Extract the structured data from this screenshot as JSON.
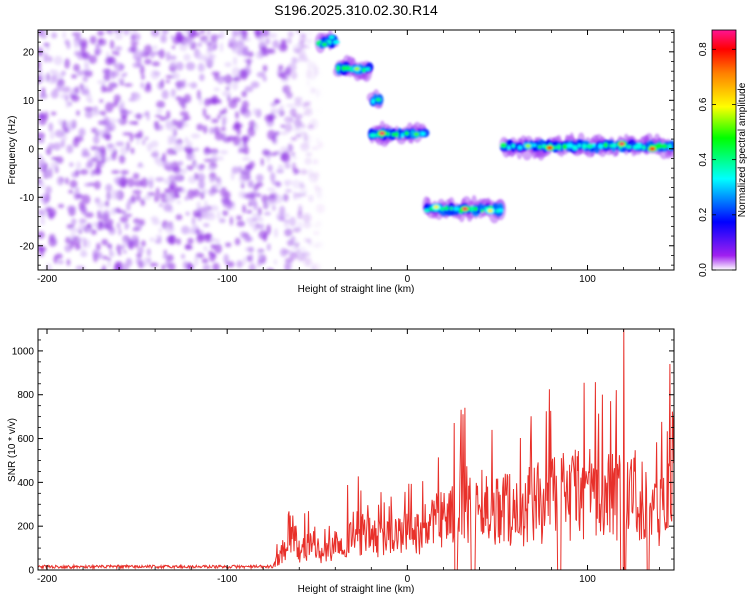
{
  "figure_title": "S196.2025.310.02.30.R14",
  "chart_data": [
    {
      "type": "heatmap",
      "xlabel": "Height of straight line (km)",
      "ylabel": "Frequency (Hz)",
      "xlim": [
        -205,
        148
      ],
      "ylim": [
        -25,
        24.5
      ],
      "xticks": [
        -200,
        -100,
        0,
        100
      ],
      "yticks": [
        -20,
        -10,
        0,
        10,
        20
      ],
      "colorbar": {
        "label": "Normalized spectral amplitude",
        "range": [
          0,
          0.87
        ],
        "ticks": [
          0.0,
          0.2,
          0.4,
          0.6,
          0.8
        ],
        "colormap": [
          "#ffffff",
          "#a020f0",
          "#0000ff",
          "#00ffff",
          "#00ff00",
          "#ffff00",
          "#ff8000",
          "#ff0000",
          "#ff1493"
        ]
      },
      "noise_region": {
        "x": [
          -205,
          -48
        ],
        "frequency_range": [
          -25,
          24.5
        ],
        "amplitude_range": [
          0.0,
          0.1
        ]
      },
      "segments": [
        {
          "x": [
            -49,
            -39
          ],
          "frequency": 22
        },
        {
          "x": [
            -39,
            -20
          ],
          "frequency": 16.5
        },
        {
          "x": [
            -20,
            -14
          ],
          "frequency": 10
        },
        {
          "x": [
            -20,
            10
          ],
          "frequency": 3
        },
        {
          "x": [
            10,
            53
          ],
          "frequency": -12.5
        },
        {
          "x": [
            53,
            148
          ],
          "frequency": 0.5
        }
      ],
      "peaks": [
        {
          "x": -46,
          "frequency": 21.5,
          "amplitude": 0.45
        },
        {
          "x": -42,
          "frequency": 23,
          "amplitude": 0.35
        },
        {
          "x": -28,
          "frequency": 16.5,
          "amplitude": 0.55
        },
        {
          "x": -14,
          "frequency": 3.2,
          "amplitude": 0.85
        },
        {
          "x": 5,
          "frequency": 3,
          "amplitude": 0.5
        },
        {
          "x": 16,
          "frequency": -12,
          "amplitude": 0.6
        },
        {
          "x": 32,
          "frequency": -12.4,
          "amplitude": 0.85
        },
        {
          "x": 46,
          "frequency": -12.8,
          "amplitude": 0.6
        },
        {
          "x": 67,
          "frequency": 0.6,
          "amplitude": 0.55
        },
        {
          "x": 79,
          "frequency": 0.2,
          "amplitude": 0.8
        },
        {
          "x": 119,
          "frequency": 1,
          "amplitude": 0.85
        },
        {
          "x": 136,
          "frequency": 0,
          "amplitude": 0.8
        }
      ]
    },
    {
      "type": "line",
      "xlabel": "Height of straight line (km)",
      "ylabel": "SNR (10 * v/v)",
      "xlim": [
        -205,
        148
      ],
      "ylim": [
        0,
        1100
      ],
      "xticks": [
        -200,
        -100,
        0,
        100
      ],
      "yticks": [
        0,
        200,
        400,
        600,
        800,
        1000
      ],
      "color": "#e8302a",
      "series": [
        {
          "x": [
            -205,
            -100,
            -75,
            -68,
            -65,
            -60,
            -52,
            -48,
            -40,
            -30,
            -20,
            -10,
            0,
            10,
            20,
            30,
            40,
            50,
            60,
            70,
            80,
            90,
            100,
            110,
            120,
            130,
            140,
            148
          ],
          "values": [
            15,
            15,
            20,
            150,
            300,
            120,
            200,
            100,
            180,
            260,
            220,
            220,
            260,
            280,
            350,
            430,
            450,
            420,
            400,
            450,
            480,
            500,
            530,
            500,
            550,
            480,
            400,
            750
          ]
        }
      ],
      "notable_points": [
        {
          "x": 120,
          "y": 1100
        },
        {
          "x": 98,
          "y": 855
        },
        {
          "x": 148,
          "y": 790
        }
      ]
    }
  ]
}
